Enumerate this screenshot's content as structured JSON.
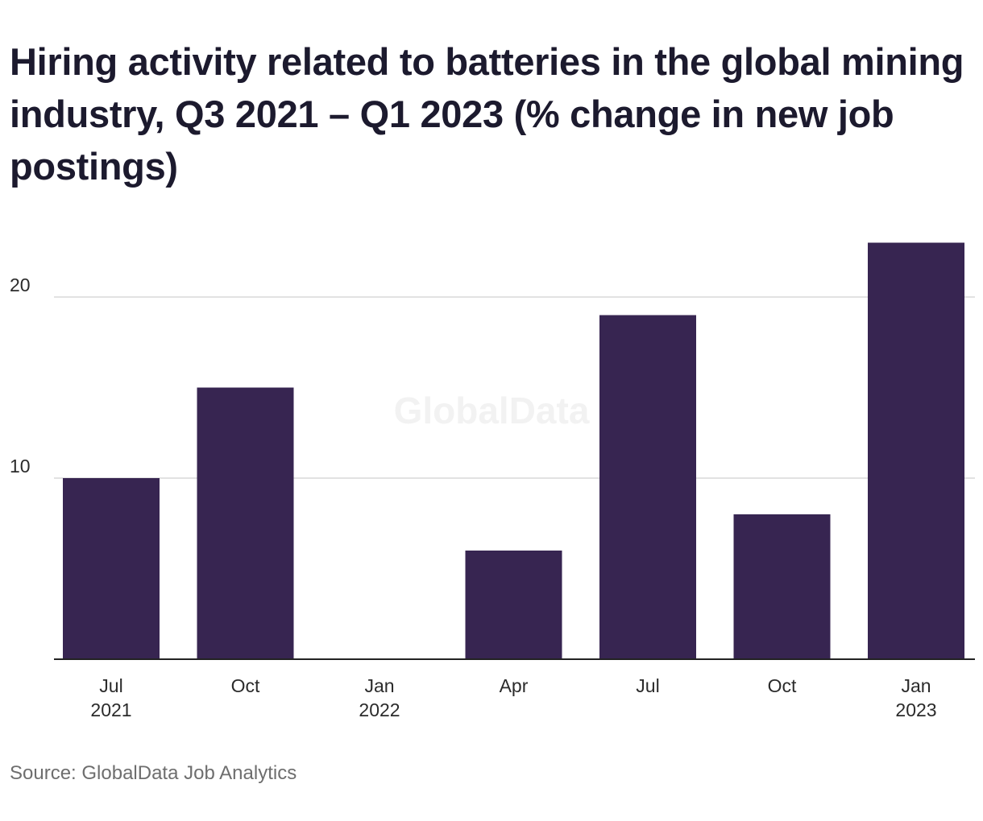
{
  "chart_data": {
    "type": "bar",
    "title": "Hiring activity related to batteries in the global mining industry, Q3 2021 – Q1 2023 (% change in new job postings)",
    "categories": [
      [
        "Jul",
        "2021"
      ],
      [
        "Oct",
        ""
      ],
      [
        "Jan",
        "2022"
      ],
      [
        "Apr",
        ""
      ],
      [
        "Jul",
        ""
      ],
      [
        "Oct",
        ""
      ],
      [
        "Jan",
        "2023"
      ]
    ],
    "values": [
      10,
      15,
      0,
      6,
      19,
      8,
      23
    ],
    "yticks": [
      10,
      20
    ],
    "ylim": [
      0,
      24
    ],
    "grid": true,
    "bar_color": "#372551",
    "watermark": "GlobalData",
    "source": "Source: GlobalData Job Analytics"
  }
}
